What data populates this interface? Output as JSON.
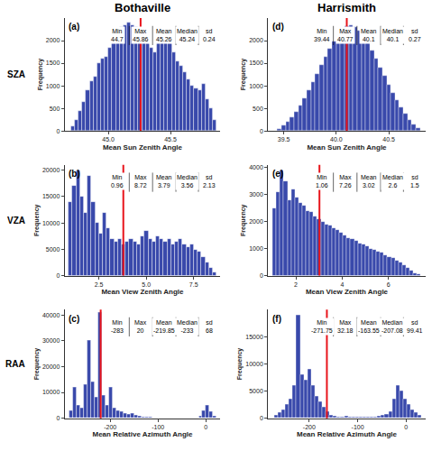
{
  "column_titles": [
    "Bothaville",
    "Harrismith"
  ],
  "row_labels": [
    "SZA",
    "VZA",
    "RAA"
  ],
  "chart_data": [
    {
      "type": "histogram",
      "panel": "(a)",
      "xlabel": "Mean Sun Zenith Angle",
      "ylabel": "Frequency",
      "color": "#3949ab",
      "grid": false,
      "bins": [
        44.7,
        44.73,
        44.76,
        44.79,
        44.82,
        44.85,
        44.88,
        44.91,
        44.94,
        44.97,
        45.0,
        45.03,
        45.06,
        45.09,
        45.12,
        45.15,
        45.18,
        45.21,
        45.24,
        45.27,
        45.3,
        45.33,
        45.36,
        45.39,
        45.42,
        45.45,
        45.48,
        45.51,
        45.54,
        45.57,
        45.6,
        45.63,
        45.66,
        45.69,
        45.72,
        45.75,
        45.78,
        45.81,
        45.84,
        45.87
      ],
      "counts": [
        100,
        250,
        450,
        650,
        900,
        1100,
        1200,
        1500,
        1600,
        1650,
        1850,
        1950,
        2150,
        2300,
        2350,
        2400,
        2350,
        2300,
        2250,
        2150,
        1950,
        1850,
        1750,
        2000,
        2100,
        2050,
        1950,
        1750,
        1550,
        1450,
        1300,
        1150,
        1000,
        950,
        900,
        1050,
        700,
        500,
        250
      ],
      "xlim": [
        44.65,
        45.9
      ],
      "xticks": [
        {
          "value": 45,
          "label": "45.0"
        },
        45.5
      ],
      "ylim": [
        0,
        2500
      ],
      "yticks": [
        0,
        500,
        1000,
        1500,
        2000
      ],
      "stats": {
        "labels": [
          "Min",
          "Max",
          "Mean",
          "Median",
          "sd"
        ],
        "values": [
          44.7,
          45.86,
          45.26,
          45.24,
          0.24
        ]
      }
    },
    {
      "type": "histogram",
      "panel": "(b)",
      "xlabel": "Mean View Zenith Angle",
      "ylabel": "Frequency",
      "color": "#3949ab",
      "grid": false,
      "bins": [
        0.9,
        1.1,
        1.3,
        1.5,
        1.7,
        1.9,
        2.1,
        2.3,
        2.5,
        2.7,
        2.9,
        3.1,
        3.3,
        3.5,
        3.7,
        3.9,
        4.1,
        4.3,
        4.5,
        4.7,
        4.9,
        5.1,
        5.3,
        5.5,
        5.7,
        5.9,
        6.1,
        6.3,
        6.5,
        6.7,
        6.9,
        7.1,
        7.3,
        7.5,
        7.7,
        7.9,
        8.1,
        8.3,
        8.5,
        8.7
      ],
      "counts": [
        14000,
        17000,
        20000,
        15000,
        12000,
        19000,
        14000,
        10000,
        8000,
        12000,
        9000,
        7000,
        6500,
        7000,
        6000,
        6500,
        7000,
        6500,
        6000,
        7500,
        8500,
        7000,
        6500,
        7500,
        7000,
        6500,
        7000,
        6000,
        6500,
        7000,
        6000,
        5500,
        6000,
        5000,
        4500,
        3500,
        2500,
        1500,
        600
      ],
      "xlim": [
        0.7,
        8.9
      ],
      "xticks": [
        2.5,
        {
          "value": 5,
          "label": "5.0"
        },
        7.5
      ],
      "ylim": [
        0,
        21000
      ],
      "yticks": [
        0,
        5000,
        10000,
        15000,
        20000
      ],
      "stats": {
        "labels": [
          "Min",
          "Max",
          "Mean",
          "Median",
          "sd"
        ],
        "values": [
          0.96,
          8.72,
          3.79,
          3.56,
          2.13
        ]
      }
    },
    {
      "type": "histogram",
      "panel": "(c)",
      "xlabel": "Mean Relative Azimuth Angle",
      "ylabel": "Frequency",
      "color": "#3949ab",
      "grid": false,
      "bins": [
        -285,
        -277.5,
        -270,
        -262.5,
        -255,
        -247.5,
        -240,
        -232.5,
        -225,
        -217.5,
        -210,
        -202.5,
        -195,
        -187.5,
        -180,
        -172.5,
        -165,
        -157.5,
        -150,
        -142.5,
        -135,
        -127.5,
        -120,
        -112.5,
        -105,
        -97.5,
        -90,
        -82.5,
        -75,
        -67.5,
        -60,
        -52.5,
        -45,
        -37.5,
        -30,
        -22.5,
        -15,
        -7.5,
        0,
        7.5,
        15,
        22.5
      ],
      "counts": [
        3000,
        12000,
        5000,
        4000,
        13000,
        30000,
        14000,
        8000,
        41000,
        9000,
        5000,
        12000,
        4000,
        3000,
        2500,
        2000,
        1500,
        1800,
        1200,
        800,
        600,
        500,
        400,
        300,
        300,
        200,
        200,
        150,
        150,
        100,
        100,
        100,
        100,
        150,
        200,
        300,
        800,
        3000,
        5000,
        2500,
        800
      ],
      "xlim": [
        -295,
        30
      ],
      "xticks": [
        -200,
        -100,
        0
      ],
      "ylim": [
        0,
        42000
      ],
      "yticks": [
        0,
        10000,
        20000,
        30000,
        40000
      ],
      "stats": {
        "labels": [
          "Min",
          "Max",
          "Mean",
          "Median",
          "sd"
        ],
        "values": [
          -283,
          20,
          -219.85,
          -233,
          68
        ]
      }
    },
    {
      "type": "histogram",
      "panel": "(d)",
      "xlabel": "Mean Sun Zenith Angle",
      "ylabel": "Frequency",
      "color": "#3949ab",
      "grid": false,
      "bins": [
        39.44,
        39.48,
        39.52,
        39.56,
        39.6,
        39.64,
        39.68,
        39.72,
        39.76,
        39.8,
        39.84,
        39.88,
        39.92,
        39.96,
        40.0,
        40.04,
        40.08,
        40.12,
        40.16,
        40.2,
        40.24,
        40.28,
        40.32,
        40.36,
        40.4,
        40.44,
        40.48,
        40.52,
        40.56,
        40.6,
        40.64,
        40.68,
        40.72,
        40.76,
        40.8
      ],
      "counts": [
        50,
        120,
        200,
        300,
        420,
        560,
        720,
        900,
        1080,
        1270,
        1460,
        1650,
        1830,
        1990,
        2130,
        2250,
        2330,
        2350,
        2310,
        2230,
        2110,
        1960,
        1790,
        1600,
        1410,
        1220,
        1030,
        850,
        680,
        520,
        380,
        250,
        140,
        60
      ],
      "xlim": [
        39.35,
        40.85
      ],
      "xticks": [
        39.5,
        {
          "value": 40,
          "label": "40.0"
        },
        40.5
      ],
      "ylim": [
        0,
        2500
      ],
      "yticks": [
        0,
        500,
        1000,
        1500,
        2000
      ],
      "stats": {
        "labels": [
          "Min",
          "Max",
          "Mean",
          "Median",
          "sd"
        ],
        "values": [
          39.44,
          40.77,
          40.1,
          40.1,
          0.27
        ]
      }
    },
    {
      "type": "histogram",
      "panel": "(e)",
      "xlabel": "Mean View Zenith Angle",
      "ylabel": "Frequency",
      "color": "#3949ab",
      "grid": false,
      "bins": [
        1.0,
        1.16,
        1.32,
        1.48,
        1.64,
        1.8,
        1.96,
        2.12,
        2.28,
        2.44,
        2.6,
        2.76,
        2.92,
        3.08,
        3.24,
        3.4,
        3.56,
        3.72,
        3.88,
        4.04,
        4.2,
        4.36,
        4.52,
        4.68,
        4.84,
        5.0,
        5.16,
        5.32,
        5.48,
        5.64,
        5.8,
        5.96,
        6.12,
        6.28,
        6.44,
        6.6,
        6.76,
        6.92,
        7.08,
        7.24,
        7.4
      ],
      "counts": [
        2500,
        3100,
        3900,
        3500,
        2800,
        3200,
        2900,
        2700,
        2600,
        2400,
        2350,
        2200,
        2100,
        2000,
        1900,
        1850,
        1750,
        1700,
        1600,
        1500,
        1400,
        1350,
        1300,
        1200,
        1150,
        1100,
        1000,
        950,
        900,
        850,
        750,
        700,
        650,
        550,
        500,
        400,
        300,
        200,
        100,
        50
      ],
      "xlim": [
        0.8,
        7.6
      ],
      "xticks": [
        2,
        4,
        6
      ],
      "ylim": [
        0,
        4100
      ],
      "yticks": [
        0,
        1000,
        2000,
        3000,
        4000
      ],
      "stats": {
        "labels": [
          "Min",
          "Max",
          "Mean",
          "Median",
          "sd"
        ],
        "values": [
          1.06,
          7.26,
          3.02,
          2.6,
          1.5
        ]
      }
    },
    {
      "type": "histogram",
      "panel": "(f)",
      "xlabel": "Mean Relative Azimuth Angle",
      "ylabel": "Frequency",
      "color": "#3949ab",
      "grid": false,
      "bins": [
        -272,
        -264.4,
        -256.8,
        -249.2,
        -241.6,
        -234,
        -226.4,
        -218.8,
        -211.2,
        -203.6,
        -196,
        -188.4,
        -180.8,
        -173.2,
        -165.6,
        -158,
        -150.4,
        -142.8,
        -135.2,
        -127.6,
        -120,
        -112.4,
        -104.8,
        -97.2,
        -89.6,
        -82,
        -74.4,
        -66.8,
        -59.2,
        -51.6,
        -44,
        -36.4,
        -28.8,
        -21.2,
        -13.6,
        -6,
        1.6,
        9.2,
        16.8,
        24.4,
        32
      ],
      "counts": [
        500,
        1000,
        1500,
        2500,
        3500,
        6000,
        19000,
        8000,
        7000,
        9000,
        6000,
        4000,
        3000,
        2000,
        1200,
        600,
        400,
        300,
        300,
        400,
        300,
        200,
        200,
        300,
        200,
        200,
        300,
        300,
        400,
        600,
        800,
        1200,
        3500,
        6000,
        5000,
        3500,
        2500,
        1500,
        1000,
        500
      ],
      "xlim": [
        -285,
        40
      ],
      "xticks": [
        -200,
        -100,
        0
      ],
      "ylim": [
        0,
        20000
      ],
      "yticks": [
        0,
        5000,
        10000,
        15000
      ],
      "stats": {
        "labels": [
          "Min",
          "Max",
          "Mean",
          "Median",
          "sd"
        ],
        "values": [
          -271.75,
          32.18,
          -163.55,
          -207.08,
          99.41
        ]
      }
    }
  ]
}
